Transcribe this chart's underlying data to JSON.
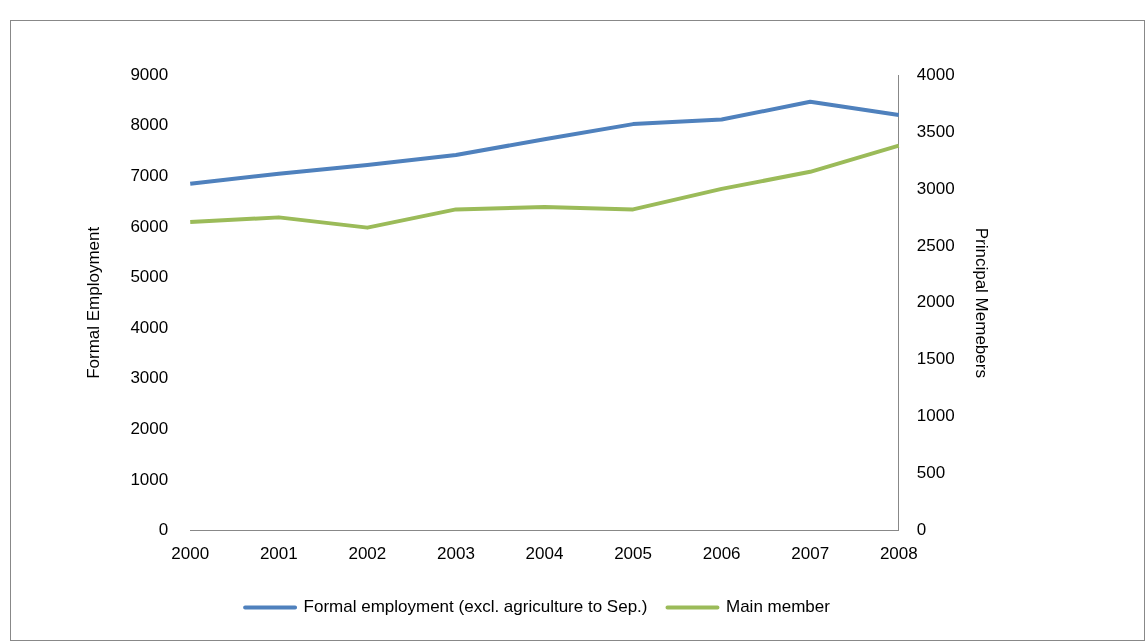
{
  "chart_data": {
    "type": "line",
    "ylabel": "Formal Employment",
    "y2label": "Principal Memebers",
    "categories": [
      "2000",
      "2001",
      "2002",
      "2003",
      "2004",
      "2005",
      "2006",
      "2007",
      "2008"
    ],
    "series": [
      {
        "name": "Formal employment (excl. agriculture to Sep.)",
        "color": "#4f81bd",
        "values": [
          6850,
          7050,
          7220,
          7420,
          7730,
          8030,
          8120,
          8470,
          8210
        ]
      },
      {
        "name": "Main member",
        "color": "#9bbb59",
        "axis": "y2",
        "values": [
          2710,
          2750,
          2660,
          2820,
          2840,
          2820,
          3000,
          3150,
          3380
        ]
      }
    ],
    "ylim": [
      0,
      9000
    ],
    "yticks": [
      0,
      1000,
      2000,
      3000,
      4000,
      5000,
      6000,
      7000,
      8000,
      9000
    ],
    "y2lim": [
      0,
      4000
    ],
    "y2ticks": [
      0,
      500,
      1000,
      1500,
      2000,
      2500,
      3000,
      3500,
      4000
    ],
    "grid": false,
    "legend": "bottom",
    "marker": "none",
    "line_style": "solid"
  }
}
